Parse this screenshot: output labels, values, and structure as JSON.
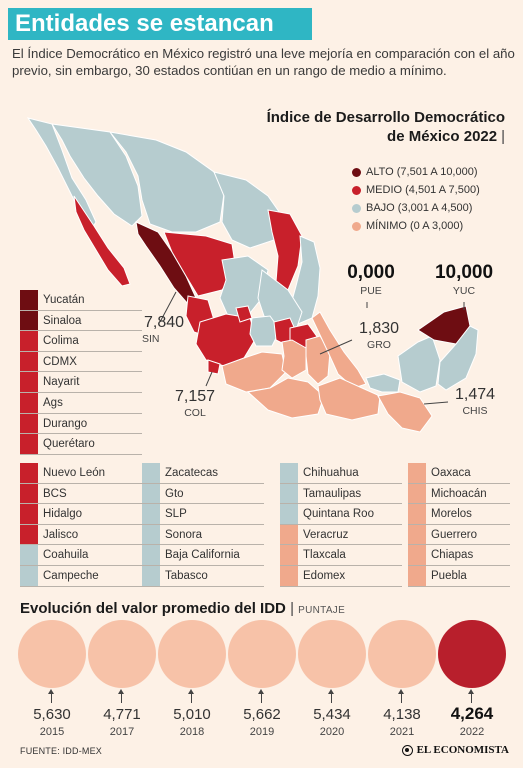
{
  "header": {
    "title": "Entidades se estancan",
    "intro": "El Índice Democrático en México registró una leve mejoría en comparación con el año previo, sin embargo, 30 estados contiúan en un rango de medio a mínimo."
  },
  "map": {
    "title_line1": "Índice de Desarrollo Democrático",
    "title_line2": "de México 2022",
    "title_bar": "|",
    "legend": [
      {
        "label": "ALTO (7,501 A 10,000)",
        "color": "#6e0d12"
      },
      {
        "label": "MEDIO (4,501 A 7,500)",
        "color": "#c8202b"
      },
      {
        "label": "BAJO (3,001 A 4,500)",
        "color": "#b6cccf"
      },
      {
        "label": "MÍNIMO (0 A 3,000)",
        "color": "#f0a98c"
      }
    ],
    "callouts": [
      {
        "value": "0,000",
        "code": "PUE"
      },
      {
        "value": "10,000",
        "code": "YUC"
      },
      {
        "value": "7,840",
        "code": "SIN"
      },
      {
        "value": "1,830",
        "code": "GRO"
      },
      {
        "value": "7,157",
        "code": "COL"
      },
      {
        "value": "1,474",
        "code": "CHIS"
      }
    ]
  },
  "states": {
    "col1_top": [
      {
        "name": "Yucatán",
        "color": "#6e0d12"
      },
      {
        "name": "Sinaloa",
        "color": "#6e0d12"
      },
      {
        "name": "Colima",
        "color": "#c8202b"
      },
      {
        "name": "CDMX",
        "color": "#c8202b"
      },
      {
        "name": "Nayarit",
        "color": "#c8202b"
      },
      {
        "name": "Ags",
        "color": "#c8202b"
      },
      {
        "name": "Durango",
        "color": "#c8202b"
      },
      {
        "name": "Querétaro",
        "color": "#c8202b"
      }
    ],
    "col1": [
      {
        "name": "Nuevo León",
        "color": "#c8202b"
      },
      {
        "name": "BCS",
        "color": "#c8202b"
      },
      {
        "name": "Hidalgo",
        "color": "#c8202b"
      },
      {
        "name": "Jalisco",
        "color": "#c8202b"
      },
      {
        "name": "Coahuila",
        "color": "#b6cccf"
      },
      {
        "name": "Campeche",
        "color": "#b6cccf"
      }
    ],
    "col2": [
      {
        "name": "Zacatecas",
        "color": "#b6cccf"
      },
      {
        "name": "Gto",
        "color": "#b6cccf"
      },
      {
        "name": "SLP",
        "color": "#b6cccf"
      },
      {
        "name": "Sonora",
        "color": "#b6cccf"
      },
      {
        "name": "Baja California",
        "color": "#b6cccf"
      },
      {
        "name": "Tabasco",
        "color": "#b6cccf"
      }
    ],
    "col3": [
      {
        "name": "Chihuahua",
        "color": "#b6cccf"
      },
      {
        "name": "Tamaulipas",
        "color": "#b6cccf"
      },
      {
        "name": "Quintana Roo",
        "color": "#b6cccf"
      },
      {
        "name": "Veracruz",
        "color": "#f0a98c"
      },
      {
        "name": "Tlaxcala",
        "color": "#f0a98c"
      },
      {
        "name": "Edomex",
        "color": "#f0a98c"
      }
    ],
    "col4": [
      {
        "name": "Oaxaca",
        "color": "#f0a98c"
      },
      {
        "name": "Michoacán",
        "color": "#f0a98c"
      },
      {
        "name": "Morelos",
        "color": "#f0a98c"
      },
      {
        "name": "Guerrero",
        "color": "#f0a98c"
      },
      {
        "name": "Chiapas",
        "color": "#f0a98c"
      },
      {
        "name": "Puebla",
        "color": "#f0a98c"
      }
    ]
  },
  "evolution": {
    "title": "Evolución del valor promedio del IDD",
    "bar": "|",
    "unit": "PUNTAJE",
    "items": [
      {
        "value": "5,630",
        "year": "2015",
        "color": "#f7c2a8"
      },
      {
        "value": "4,771",
        "year": "2017",
        "color": "#f7c2a8"
      },
      {
        "value": "5,010",
        "year": "2018",
        "color": "#f7c2a8"
      },
      {
        "value": "5,662",
        "year": "2019",
        "color": "#f7c2a8"
      },
      {
        "value": "5,434",
        "year": "2020",
        "color": "#f7c2a8"
      },
      {
        "value": "4,138",
        "year": "2021",
        "color": "#f7c2a8"
      },
      {
        "value": "4,264",
        "year": "2022",
        "color": "#b81f2c"
      }
    ]
  },
  "footer": {
    "source": "FUENTE: IDD-MEX",
    "brand": "EL ECONOMISTA"
  }
}
